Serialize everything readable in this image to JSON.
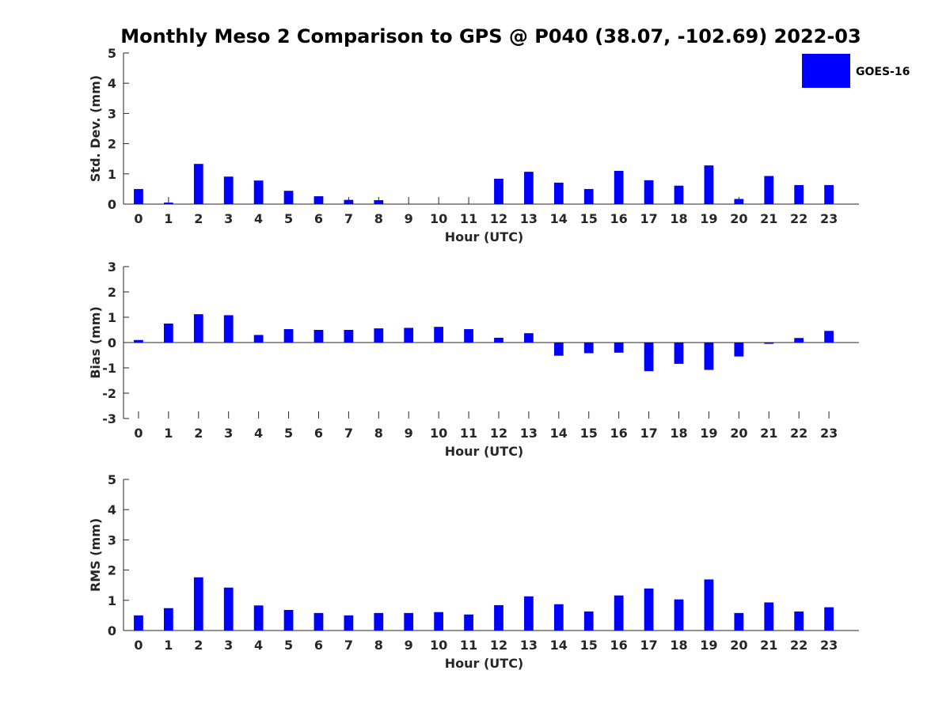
{
  "title": "Monthly Meso 2 Comparison to GPS @ P040 (38.07, -102.69) 2022-03",
  "legend": {
    "label": "GOES-16",
    "color": "#0000ff",
    "placement": "top-right"
  },
  "chart_data": [
    {
      "type": "bar",
      "name": "std-dev",
      "xlabel": "Hour (UTC)",
      "ylabel": "Std. Dev. (mm)",
      "ylim": [
        0,
        5
      ],
      "yticks": [
        0,
        1,
        2,
        3,
        4,
        5
      ],
      "categories": [
        "0",
        "1",
        "2",
        "3",
        "4",
        "5",
        "6",
        "7",
        "8",
        "9",
        "10",
        "11",
        "12",
        "13",
        "14",
        "15",
        "16",
        "17",
        "18",
        "19",
        "20",
        "21",
        "22",
        "23"
      ],
      "series": [
        {
          "name": "GOES-16",
          "color": "#0000ff",
          "values": [
            0.5,
            0.05,
            1.33,
            0.91,
            0.78,
            0.44,
            0.26,
            0.14,
            0.13,
            0,
            0,
            0,
            0.84,
            1.07,
            0.71,
            0.5,
            1.1,
            0.79,
            0.61,
            1.28,
            0.17,
            0.93,
            0.63,
            0.63
          ]
        }
      ]
    },
    {
      "type": "bar",
      "name": "bias",
      "xlabel": "Hour (UTC)",
      "ylabel": "Bias (mm)",
      "ylim": [
        -3,
        3
      ],
      "yticks": [
        -3,
        -2,
        -1,
        0,
        1,
        2,
        3
      ],
      "categories": [
        "0",
        "1",
        "2",
        "3",
        "4",
        "5",
        "6",
        "7",
        "8",
        "9",
        "10",
        "11",
        "12",
        "13",
        "14",
        "15",
        "16",
        "17",
        "18",
        "19",
        "20",
        "21",
        "22",
        "23"
      ],
      "series": [
        {
          "name": "GOES-16",
          "color": "#0000ff",
          "values": [
            0.1,
            0.75,
            1.12,
            1.08,
            0.3,
            0.53,
            0.5,
            0.5,
            0.56,
            0.58,
            0.62,
            0.53,
            0.19,
            0.37,
            -0.52,
            -0.42,
            -0.4,
            -1.13,
            -0.84,
            -1.08,
            -0.55,
            -0.05,
            0.18,
            0.46
          ]
        }
      ]
    },
    {
      "type": "bar",
      "name": "rms",
      "xlabel": "Hour (UTC)",
      "ylabel": "RMS (mm)",
      "ylim": [
        0,
        5
      ],
      "yticks": [
        0,
        1,
        2,
        3,
        4,
        5
      ],
      "categories": [
        "0",
        "1",
        "2",
        "3",
        "4",
        "5",
        "6",
        "7",
        "8",
        "9",
        "10",
        "11",
        "12",
        "13",
        "14",
        "15",
        "16",
        "17",
        "18",
        "19",
        "20",
        "21",
        "22",
        "23"
      ],
      "series": [
        {
          "name": "GOES-16",
          "color": "#0000ff",
          "values": [
            0.5,
            0.74,
            1.76,
            1.42,
            0.83,
            0.68,
            0.58,
            0.5,
            0.58,
            0.58,
            0.61,
            0.53,
            0.84,
            1.13,
            0.87,
            0.63,
            1.16,
            1.39,
            1.03,
            1.69,
            0.58,
            0.93,
            0.63,
            0.77
          ]
        }
      ]
    }
  ]
}
